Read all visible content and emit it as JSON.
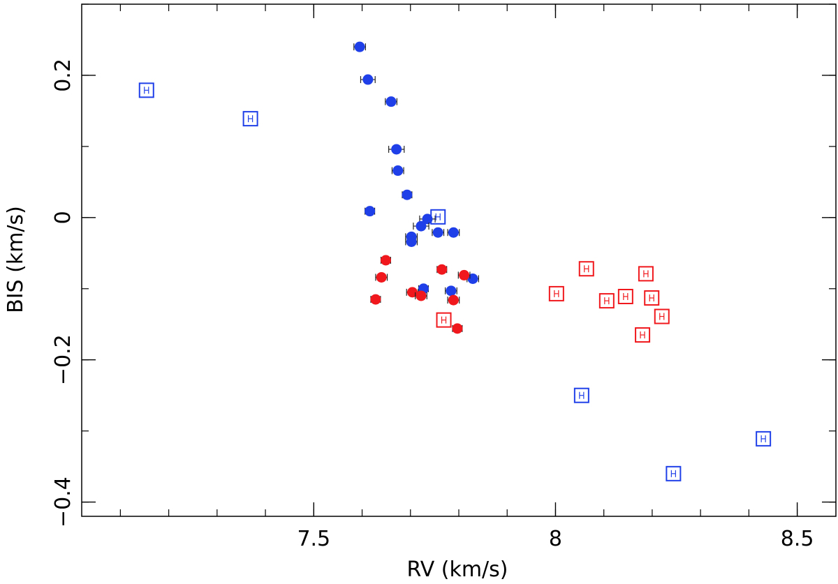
{
  "chart_data": {
    "type": "scatter",
    "title": "",
    "xlabel": "RV (km/s)",
    "ylabel": "BIS (km/s)",
    "xlim": [
      7.02,
      8.58
    ],
    "ylim": [
      -0.42,
      0.3
    ],
    "grid": false,
    "x_ticks": [
      {
        "value": 7.5,
        "label": "7.5"
      },
      {
        "value": 8.0,
        "label": "8"
      },
      {
        "value": 8.5,
        "label": "8.5"
      }
    ],
    "y_ticks": [
      {
        "value": 0.2,
        "label": "0.2"
      },
      {
        "value": 0.0,
        "label": "0"
      },
      {
        "value": -0.2,
        "label": "−0.2"
      },
      {
        "value": -0.4,
        "label": "−0.4"
      }
    ],
    "x_minor_step": 0.1,
    "y_minor_step": 0.1,
    "colors": {
      "blue": "#1f3fe8",
      "red": "#f0181c",
      "axis": "#000000"
    },
    "series": [
      {
        "name": "blue filled circles",
        "marker": "circle",
        "color": "#1f3fe8",
        "points": [
          {
            "x": 7.595,
            "y": 0.24,
            "xerr": 0.012
          },
          {
            "x": 7.612,
            "y": 0.194,
            "xerr": 0.015
          },
          {
            "x": 7.66,
            "y": 0.163,
            "xerr": 0.012
          },
          {
            "x": 7.671,
            "y": 0.096,
            "xerr": 0.016
          },
          {
            "x": 7.674,
            "y": 0.066,
            "xerr": 0.012
          },
          {
            "x": 7.693,
            "y": 0.032,
            "xerr": 0.01
          },
          {
            "x": 7.616,
            "y": 0.009,
            "xerr": 0.01
          },
          {
            "x": 7.735,
            "y": -0.002,
            "xerr": 0.016
          },
          {
            "x": 7.722,
            "y": -0.012,
            "xerr": 0.016
          },
          {
            "x": 7.757,
            "y": -0.021,
            "xerr": 0.012
          },
          {
            "x": 7.789,
            "y": -0.021,
            "xerr": 0.012
          },
          {
            "x": 7.702,
            "y": -0.027,
            "xerr": 0.012
          },
          {
            "x": 7.702,
            "y": -0.034,
            "xerr": 0.012
          },
          {
            "x": 7.829,
            "y": -0.086,
            "xerr": 0.012
          },
          {
            "x": 7.727,
            "y": -0.1,
            "xerr": 0.01
          },
          {
            "x": 7.784,
            "y": -0.103,
            "xerr": 0.012
          }
        ]
      },
      {
        "name": "red filled circles",
        "marker": "circle",
        "color": "#f0181c",
        "points": [
          {
            "x": 7.649,
            "y": -0.06,
            "xerr": 0.01
          },
          {
            "x": 7.765,
            "y": -0.073,
            "xerr": 0.01
          },
          {
            "x": 7.811,
            "y": -0.081,
            "xerr": 0.012
          },
          {
            "x": 7.64,
            "y": -0.084,
            "xerr": 0.012
          },
          {
            "x": 7.704,
            "y": -0.105,
            "xerr": 0.012
          },
          {
            "x": 7.722,
            "y": -0.11,
            "xerr": 0.012
          },
          {
            "x": 7.628,
            "y": -0.115,
            "xerr": 0.01
          },
          {
            "x": 7.789,
            "y": -0.116,
            "xerr": 0.012
          },
          {
            "x": 7.797,
            "y": -0.156,
            "xerr": 0.01
          }
        ]
      },
      {
        "name": "blue open squares",
        "marker": "square",
        "color": "#1f3fe8",
        "points": [
          {
            "x": 7.154,
            "y": 0.179,
            "xerr": 0.004
          },
          {
            "x": 7.369,
            "y": 0.139,
            "xerr": 0.004
          },
          {
            "x": 7.757,
            "y": 0.001,
            "xerr": 0.004
          },
          {
            "x": 8.054,
            "y": -0.25,
            "xerr": 0.004
          },
          {
            "x": 8.43,
            "y": -0.311,
            "xerr": 0.004
          },
          {
            "x": 8.244,
            "y": -0.36,
            "xerr": 0.004
          }
        ]
      },
      {
        "name": "red open squares",
        "marker": "square",
        "color": "#f0181c",
        "points": [
          {
            "x": 8.064,
            "y": -0.072,
            "xerr": 0.004
          },
          {
            "x": 8.187,
            "y": -0.079,
            "xerr": 0.004
          },
          {
            "x": 8.002,
            "y": -0.107,
            "xerr": 0.004
          },
          {
            "x": 8.145,
            "y": -0.111,
            "xerr": 0.004
          },
          {
            "x": 8.199,
            "y": -0.113,
            "xerr": 0.004
          },
          {
            "x": 8.106,
            "y": -0.117,
            "xerr": 0.004
          },
          {
            "x": 8.22,
            "y": -0.139,
            "xerr": 0.004
          },
          {
            "x": 7.769,
            "y": -0.144,
            "xerr": 0.004
          },
          {
            "x": 8.18,
            "y": -0.165,
            "xerr": 0.004
          }
        ]
      }
    ]
  }
}
